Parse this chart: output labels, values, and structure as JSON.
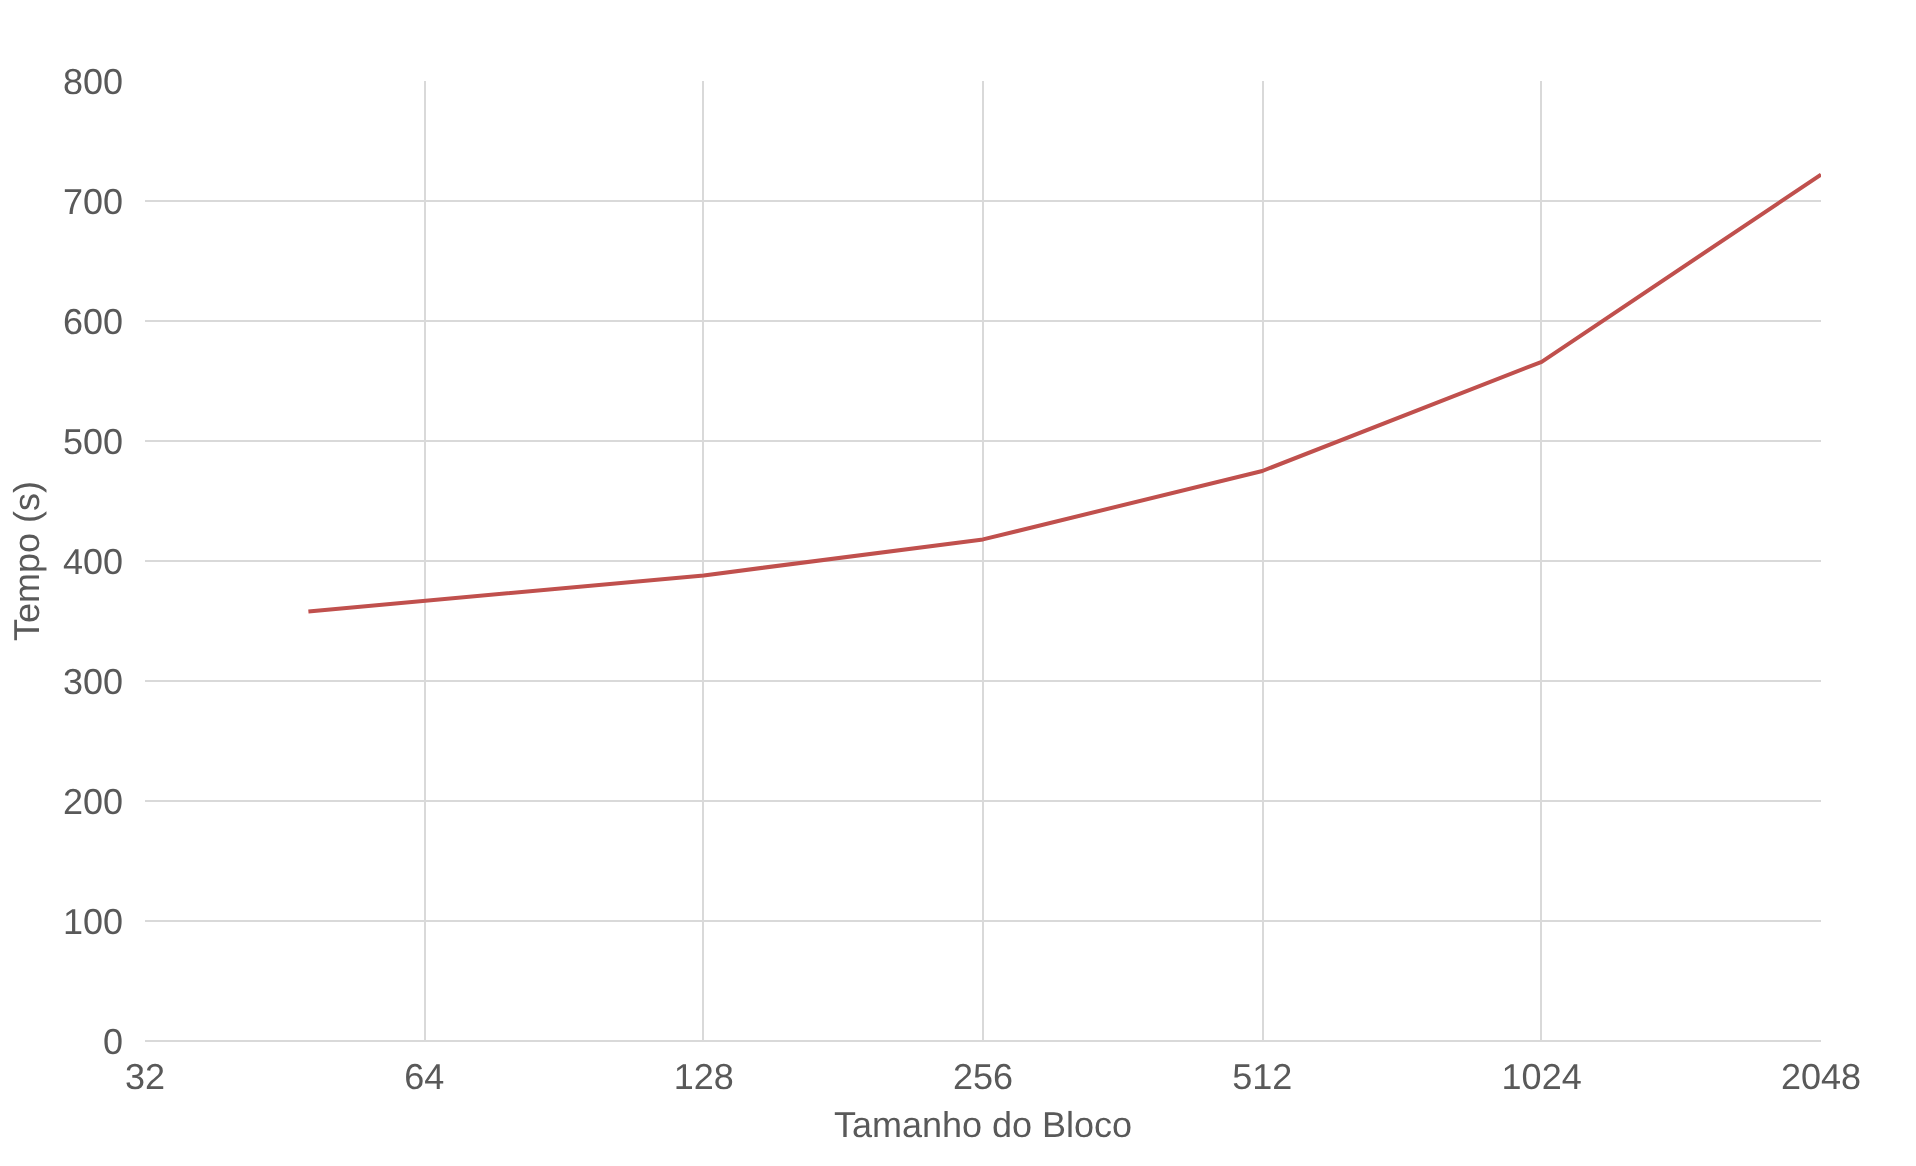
{
  "chart_data": {
    "type": "line",
    "xlabel": "Tamanho do Bloco",
    "ylabel": "Tempo (s)",
    "x": [
      48,
      128,
      256,
      512,
      1024,
      2048
    ],
    "series": [
      {
        "color": "#c0504d",
        "values": [
          358,
          388,
          418,
          475,
          566,
          722
        ]
      }
    ],
    "log": "x",
    "xlim": [
      32,
      2048
    ],
    "xticks": [
      32,
      64,
      128,
      256,
      512,
      1024,
      2048
    ],
    "ylim": [
      0,
      800
    ],
    "yticks": [
      0,
      100,
      200,
      300,
      400,
      500,
      600,
      700,
      800
    ],
    "grid": true,
    "line_style": "solid"
  }
}
